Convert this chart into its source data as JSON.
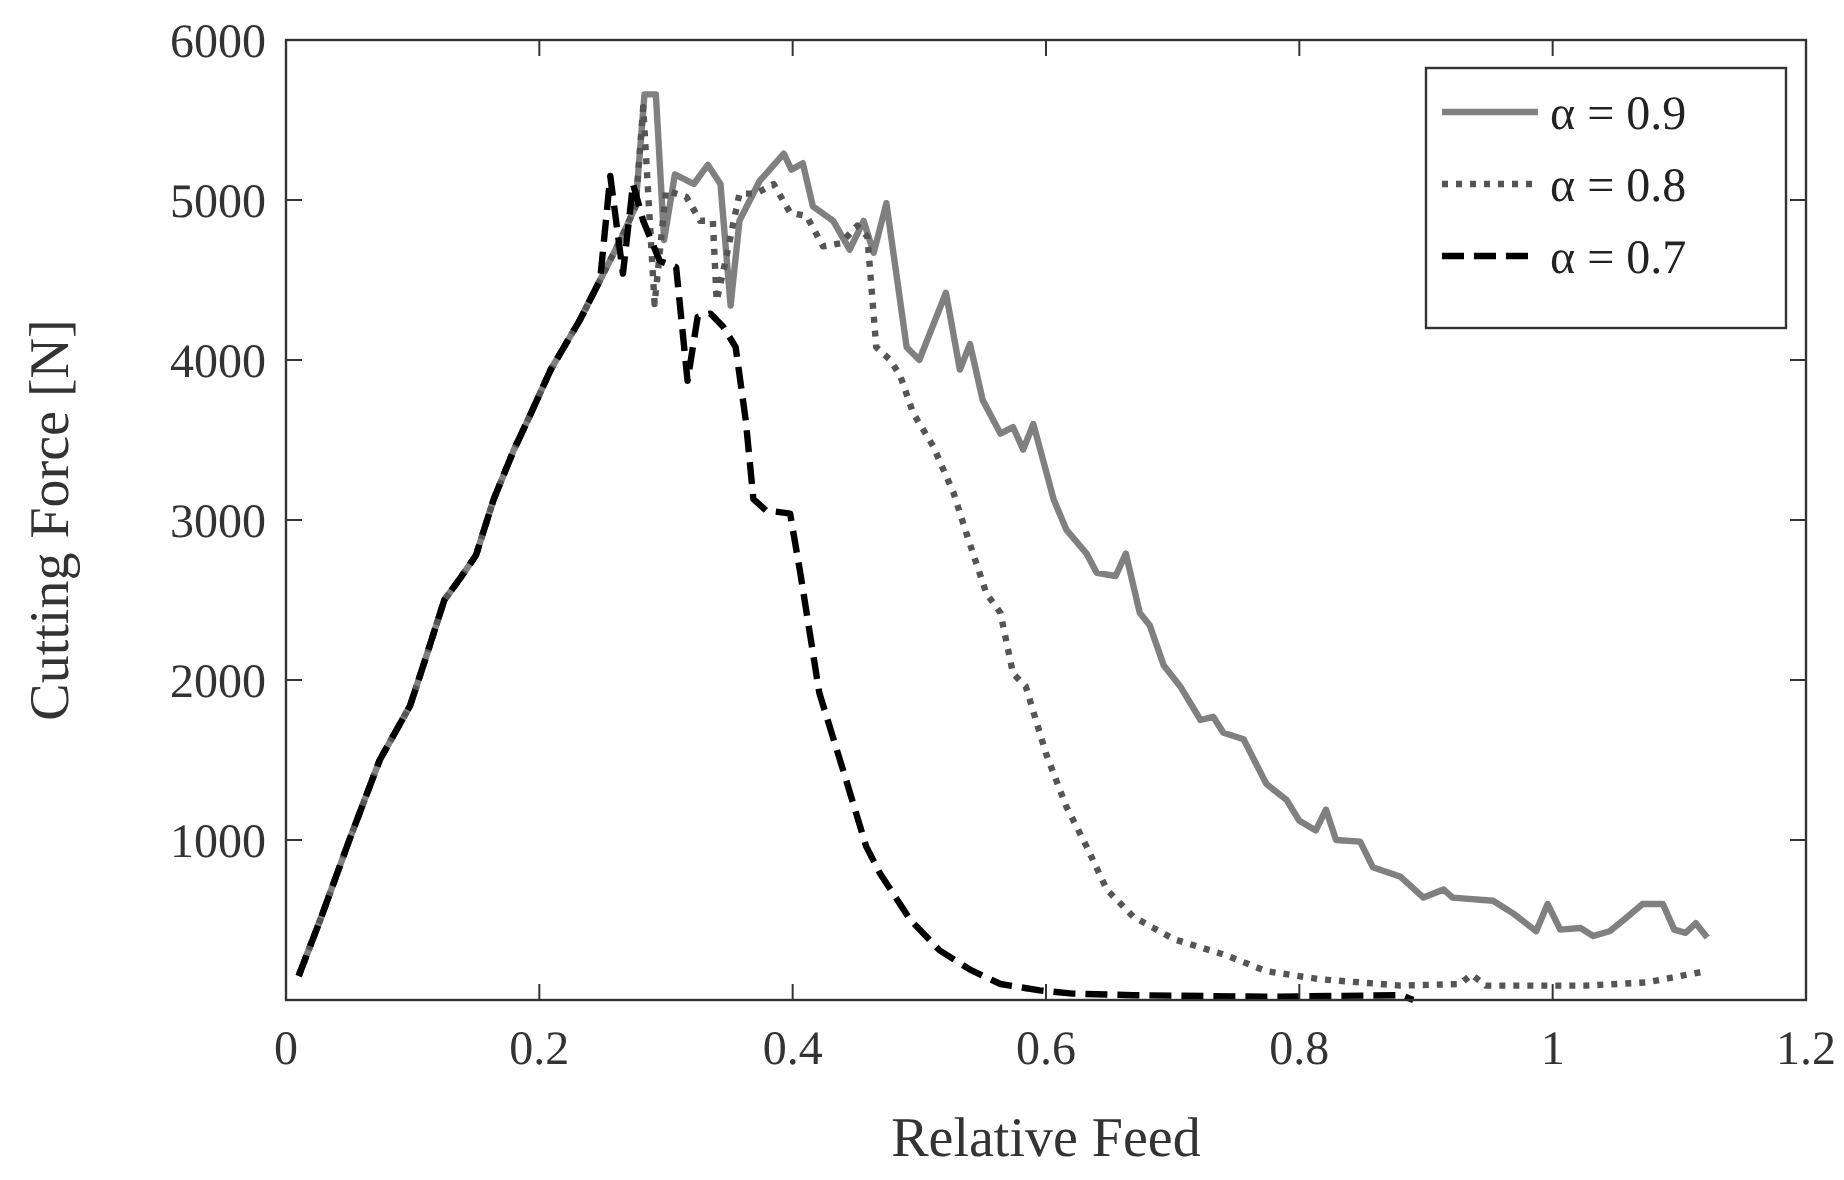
{
  "chart_data": {
    "type": "line",
    "xlabel": "Relative Feed",
    "ylabel": "Cutting Force [N]",
    "xlim": [
      0,
      1.2
    ],
    "xticks": [
      0,
      0.2,
      0.4,
      0.6,
      0.8,
      1,
      1.2
    ],
    "ylim": [
      0,
      6000
    ],
    "yticks": [
      1000,
      2000,
      3000,
      4000,
      5000,
      6000
    ],
    "grid": false,
    "legend": "top right",
    "series": [
      {
        "name": "α = 0.9",
        "color": "#808080",
        "line_style": "solid",
        "x": [
          0.01,
          0.027,
          0.05,
          0.074,
          0.098,
          0.11,
          0.125,
          0.137,
          0.15,
          0.164,
          0.18,
          0.193,
          0.209,
          0.232,
          0.248,
          0.264,
          0.276,
          0.283,
          0.292,
          0.2985,
          0.307,
          0.322,
          0.333,
          0.343,
          0.351,
          0.358,
          0.374,
          0.393,
          0.399,
          0.408,
          0.416,
          0.432,
          0.445,
          0.456,
          0.464,
          0.474,
          0.49,
          0.5,
          0.521,
          0.532,
          0.54,
          0.55,
          0.564,
          0.574,
          0.582,
          0.59,
          0.606,
          0.616,
          0.632,
          0.64,
          0.655,
          0.663,
          0.674,
          0.682,
          0.693,
          0.706,
          0.722,
          0.732,
          0.74,
          0.756,
          0.774,
          0.79,
          0.8,
          0.813,
          0.821,
          0.829,
          0.848,
          0.858,
          0.88,
          0.898,
          0.914,
          0.921,
          0.953,
          0.969,
          0.987,
          0.996,
          1.006,
          1.022,
          1.032,
          1.045,
          1.056,
          1.071,
          1.087,
          1.096,
          1.105,
          1.113,
          1.122
        ],
        "values": [
          150,
          500,
          1000,
          1500,
          1840,
          2130,
          2500,
          2630,
          2780,
          3130,
          3440,
          3660,
          3940,
          4250,
          4500,
          4750,
          4960,
          5660,
          5660,
          4750,
          5160,
          5100,
          5220,
          5100,
          4340,
          4870,
          5120,
          5290,
          5190,
          5230,
          4960,
          4870,
          4690,
          4870,
          4670,
          4980,
          4080,
          4000,
          4420,
          3940,
          4100,
          3750,
          3540,
          3580,
          3440,
          3600,
          3130,
          2940,
          2790,
          2670,
          2650,
          2790,
          2420,
          2340,
          2090,
          1960,
          1750,
          1770,
          1670,
          1630,
          1350,
          1250,
          1120,
          1060,
          1190,
          1000,
          990,
          830,
          770,
          640,
          690,
          640,
          620,
          540,
          430,
          600,
          440,
          450,
          400,
          430,
          500,
          600,
          600,
          440,
          420,
          480,
          390
        ]
      },
      {
        "name": "α = 0.8",
        "color": "#555555",
        "line_style": "dotted",
        "x": [
          0.01,
          0.027,
          0.05,
          0.074,
          0.098,
          0.11,
          0.125,
          0.137,
          0.15,
          0.164,
          0.18,
          0.193,
          0.209,
          0.232,
          0.248,
          0.264,
          0.276,
          0.282,
          0.291,
          0.3,
          0.316,
          0.327,
          0.337,
          0.34,
          0.347,
          0.358,
          0.371,
          0.385,
          0.398,
          0.411,
          0.424,
          0.438,
          0.451,
          0.459,
          0.466,
          0.477,
          0.485,
          0.495,
          0.511,
          0.527,
          0.537,
          0.553,
          0.564,
          0.574,
          0.584,
          0.6,
          0.616,
          0.632,
          0.648,
          0.669,
          0.701,
          0.742,
          0.774,
          0.816,
          0.88,
          0.927,
          0.936,
          0.947,
          1.026,
          1.074,
          1.121
        ],
        "values": [
          150,
          500,
          1000,
          1500,
          1840,
          2130,
          2500,
          2630,
          2780,
          3130,
          3440,
          3660,
          3940,
          4250,
          4500,
          4750,
          4960,
          5580,
          4350,
          5060,
          5020,
          4870,
          4870,
          4370,
          4620,
          5040,
          5040,
          5100,
          4920,
          4900,
          4710,
          4730,
          4840,
          4770,
          4080,
          4000,
          3900,
          3670,
          3460,
          3170,
          2920,
          2540,
          2420,
          2040,
          1960,
          1540,
          1210,
          960,
          690,
          520,
          380,
          280,
          180,
          130,
          90,
          100,
          160,
          90,
          90,
          110,
          180
        ]
      },
      {
        "name": "α = 0.7",
        "color": "#000000",
        "line_style": "dashed",
        "x": [
          0.01,
          0.027,
          0.05,
          0.074,
          0.098,
          0.11,
          0.125,
          0.137,
          0.15,
          0.164,
          0.18,
          0.193,
          0.209,
          0.232,
          0.248,
          0.256,
          0.266,
          0.274,
          0.282,
          0.295,
          0.308,
          0.317,
          0.325,
          0.335,
          0.345,
          0.355,
          0.363,
          0.369,
          0.379,
          0.398,
          0.406,
          0.421,
          0.442,
          0.458,
          0.469,
          0.493,
          0.516,
          0.54,
          0.564,
          0.595,
          0.621,
          0.669,
          0.774,
          0.88,
          0.89
        ],
        "values": [
          150,
          500,
          1000,
          1500,
          1840,
          2130,
          2500,
          2630,
          2780,
          3130,
          3440,
          3660,
          3940,
          4250,
          4500,
          5150,
          4540,
          5100,
          4870,
          4620,
          4580,
          3870,
          4270,
          4290,
          4210,
          4080,
          3620,
          3130,
          3060,
          3040,
          2670,
          1920,
          1380,
          960,
          790,
          500,
          310,
          190,
          100,
          60,
          40,
          30,
          20,
          30,
          0
        ]
      }
    ]
  }
}
